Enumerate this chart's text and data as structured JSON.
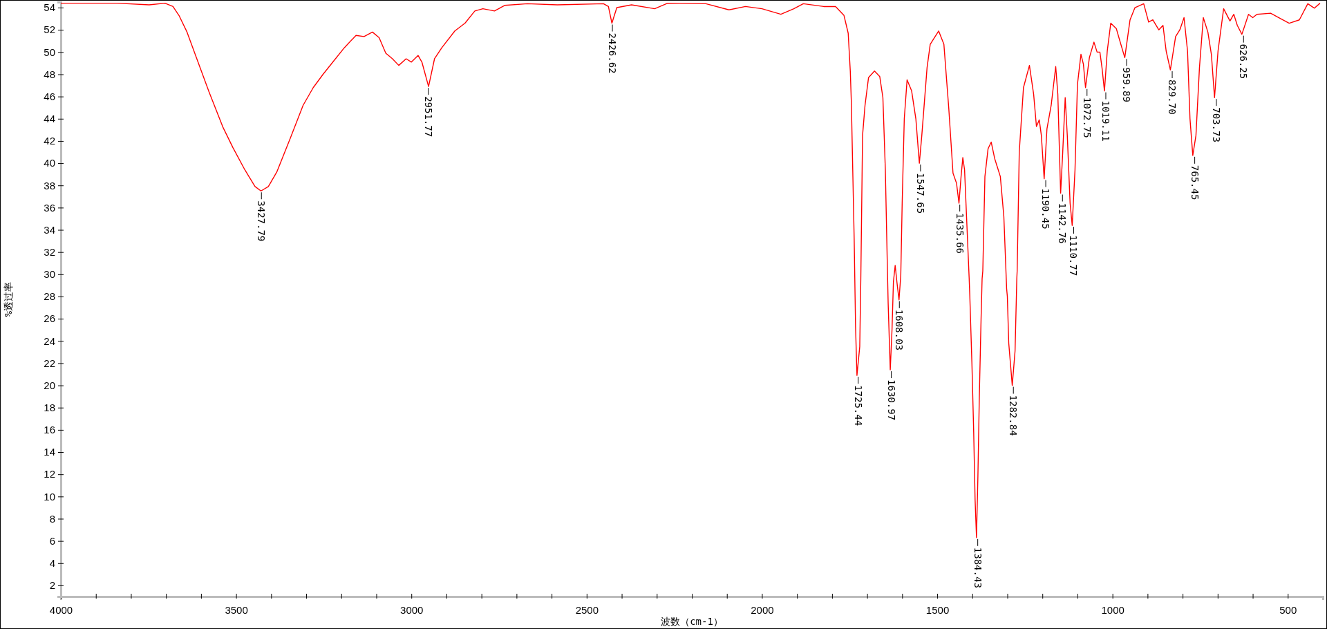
{
  "chart_data": {
    "type": "line",
    "xlabel": "波数（cm-1）",
    "ylabel": "%透过率",
    "xlim": [
      4000,
      400
    ],
    "ylim": [
      1,
      54.5
    ],
    "xticks": [
      4000,
      {
        "value": 3900,
        "label": null
      },
      {
        "value": 3800,
        "label": null
      },
      {
        "value": 3700,
        "label": null
      },
      {
        "value": 3600,
        "label": null
      },
      3500,
      {
        "value": 3400,
        "label": null
      },
      {
        "value": 3300,
        "label": null
      },
      {
        "value": 3200,
        "label": null
      },
      {
        "value": 3100,
        "label": null
      },
      3000,
      {
        "value": 2900,
        "label": null
      },
      {
        "value": 2800,
        "label": null
      },
      {
        "value": 2700,
        "label": null
      },
      {
        "value": 2600,
        "label": null
      },
      2500,
      {
        "value": 2400,
        "label": null
      },
      {
        "value": 2300,
        "label": null
      },
      {
        "value": 2200,
        "label": null
      },
      {
        "value": 2100,
        "label": null
      },
      2000,
      {
        "value": 1900,
        "label": null
      },
      {
        "value": 1800,
        "label": null
      },
      {
        "value": 1700,
        "label": null
      },
      {
        "value": 1600,
        "label": null
      },
      1500,
      {
        "value": 1400,
        "label": null
      },
      {
        "value": 1300,
        "label": null
      },
      {
        "value": 1200,
        "label": null
      },
      {
        "value": 1100,
        "label": null
      },
      1000,
      {
        "value": 900,
        "label": null
      },
      {
        "value": 800,
        "label": null
      },
      {
        "value": 700,
        "label": null
      },
      {
        "value": 600,
        "label": null
      },
      500
    ],
    "yticks": [
      2,
      4,
      6,
      8,
      10,
      12,
      14,
      16,
      18,
      20,
      22,
      24,
      26,
      28,
      30,
      32,
      34,
      36,
      38,
      40,
      42,
      44,
      46,
      48,
      50,
      52,
      54
    ],
    "grid": false,
    "marker": "none",
    "line_style": "solid",
    "series": [
      {
        "color": "#ff0000",
        "x": [
          4000,
          3942,
          3839,
          3748,
          3703,
          3680,
          3663,
          3640,
          3611,
          3577,
          3537,
          3509,
          3475,
          3446,
          3429,
          3408,
          3384,
          3346,
          3309,
          3280,
          3252,
          3224,
          3191,
          3158,
          3135,
          3111,
          3092,
          3073,
          3054,
          3036,
          3015,
          3000,
          2981,
          2970,
          2951,
          2934,
          2913,
          2876,
          2847,
          2819,
          2796,
          2763,
          2734,
          2669,
          2584,
          2452,
          2438,
          2428,
          2414,
          2372,
          2306,
          2269,
          2160,
          2094,
          2047,
          2000,
          1946,
          1909,
          1882,
          1824,
          1790,
          1766,
          1754,
          1748,
          1745,
          1741,
          1737,
          1733,
          1729,
          1721,
          1718,
          1713,
          1706,
          1696,
          1679,
          1664,
          1655,
          1648,
          1642,
          1640,
          1634,
          1629,
          1625,
          1620,
          1615,
          1609,
          1604,
          1600,
          1594,
          1586,
          1573,
          1561,
          1551,
          1544,
          1529,
          1520,
          1496,
          1481,
          1467,
          1455,
          1445,
          1438,
          1432,
          1427,
          1422,
          1416,
          1409,
          1407,
          1401,
          1396,
          1392,
          1388,
          1384,
          1380,
          1375,
          1372,
          1370,
          1364,
          1355,
          1346,
          1336,
          1328,
          1320,
          1310,
          1302,
          1300,
          1296,
          1286,
          1278,
          1273,
          1272,
          1266,
          1254,
          1237,
          1225,
          1217,
          1209,
          1203,
          1195,
          1187,
          1175,
          1162,
          1156,
          1148,
          1142,
          1135,
          1129,
          1121,
          1115,
          1107,
          1100,
          1090,
          1083,
          1077,
          1066,
          1053,
          1044,
          1036,
          1030,
          1023,
          1015,
          1005,
          989,
          979,
          965,
          950,
          936,
          911,
          897,
          885,
          868,
          856,
          847,
          835,
          820,
          808,
          796,
          786,
          779,
          771,
          762,
          752,
          741,
          728,
          718,
          709,
          699,
          683,
          665,
          654,
          644,
          631,
          612,
          600,
          588,
          549,
          520,
          496,
          467,
          443,
          424,
          408
        ],
        "values": [
          54.4,
          54.4,
          54.4,
          54.25,
          54.4,
          54.1,
          53.3,
          51.8,
          49.3,
          46.4,
          43.2,
          41.4,
          39.4,
          37.9,
          37.5,
          37.9,
          39.2,
          42.2,
          45.2,
          46.8,
          48.0,
          49.1,
          50.4,
          51.5,
          51.4,
          51.8,
          51.3,
          49.9,
          49.4,
          48.8,
          49.4,
          49.1,
          49.7,
          49.1,
          46.9,
          49.4,
          50.4,
          51.9,
          52.6,
          53.7,
          53.9,
          53.7,
          54.2,
          54.35,
          54.25,
          54.35,
          54.1,
          52.6,
          54.0,
          54.25,
          53.9,
          54.4,
          54.35,
          53.8,
          54.1,
          53.9,
          53.4,
          53.9,
          54.35,
          54.1,
          54.1,
          53.3,
          51.7,
          48.3,
          45.5,
          39.4,
          33.3,
          25.3,
          20.9,
          23.5,
          29.6,
          42.5,
          45.2,
          47.7,
          48.3,
          47.8,
          45.9,
          39.4,
          30.3,
          27.4,
          21.4,
          25.0,
          29.3,
          30.8,
          29.3,
          27.7,
          29.9,
          36.4,
          44.0,
          47.5,
          46.5,
          44.0,
          40.0,
          42.5,
          48.6,
          50.7,
          51.9,
          50.7,
          44.9,
          39.1,
          38.2,
          36.4,
          38.8,
          40.5,
          39.4,
          34.9,
          29.7,
          28.0,
          21.9,
          15.8,
          9.7,
          6.3,
          11.8,
          18.9,
          25.9,
          29.6,
          30.3,
          38.8,
          41.3,
          41.9,
          40.4,
          39.6,
          38.8,
          35.2,
          28.7,
          28.0,
          23.8,
          20.0,
          23.1,
          29.6,
          30.3,
          41.0,
          46.8,
          48.8,
          46.2,
          43.3,
          43.9,
          42.5,
          38.6,
          43.1,
          45.2,
          48.7,
          46.2,
          37.3,
          41.0,
          45.9,
          42.5,
          36.4,
          34.4,
          39.4,
          47.1,
          49.8,
          48.9,
          46.8,
          49.5,
          50.9,
          50.0,
          50.0,
          48.6,
          46.5,
          50.1,
          52.6,
          52.1,
          51.0,
          49.5,
          52.9,
          54.0,
          54.35,
          52.7,
          52.9,
          52.0,
          52.4,
          50.1,
          48.4,
          51.4,
          52.0,
          53.1,
          50.1,
          44.0,
          40.7,
          42.5,
          48.6,
          53.1,
          51.8,
          49.8,
          45.9,
          50.1,
          53.9,
          52.8,
          53.4,
          52.4,
          51.6,
          53.4,
          53.1,
          53.4,
          53.5,
          53.0,
          52.6,
          52.9,
          54.35,
          53.95,
          54.4
        ]
      }
    ],
    "annotations": [
      {
        "text": "3427.79",
        "x": 3427.79,
        "y": 37.5
      },
      {
        "text": "2951.77",
        "x": 2951.77,
        "y": 46.9
      },
      {
        "text": "2426.62",
        "x": 2426.62,
        "y": 52.6
      },
      {
        "text": "1725.44",
        "x": 1725.44,
        "y": 20.9
      },
      {
        "text": "1630.97",
        "x": 1630.97,
        "y": 21.4
      },
      {
        "text": "1608.03",
        "x": 1608.03,
        "y": 27.7
      },
      {
        "text": "1547.65",
        "x": 1547.65,
        "y": 40.0
      },
      {
        "text": "1435.66",
        "x": 1435.66,
        "y": 36.4
      },
      {
        "text": "1384.43",
        "x": 1384.43,
        "y": 6.3
      },
      {
        "text": "1282.84",
        "x": 1282.84,
        "y": 20.0
      },
      {
        "text": "1190.45",
        "x": 1190.45,
        "y": 38.6
      },
      {
        "text": "1142.76",
        "x": 1142.76,
        "y": 37.3
      },
      {
        "text": "1110.77",
        "x": 1110.77,
        "y": 34.4
      },
      {
        "text": "1072.75",
        "x": 1072.75,
        "y": 46.8
      },
      {
        "text": "1019.11",
        "x": 1019.11,
        "y": 46.5
      },
      {
        "text": "959.89",
        "x": 959.89,
        "y": 49.5
      },
      {
        "text": "829.70",
        "x": 829.7,
        "y": 48.4
      },
      {
        "text": "765.45",
        "x": 765.45,
        "y": 40.7
      },
      {
        "text": "703.73",
        "x": 703.73,
        "y": 45.9
      },
      {
        "text": "626.25",
        "x": 626.25,
        "y": 51.6
      }
    ]
  }
}
